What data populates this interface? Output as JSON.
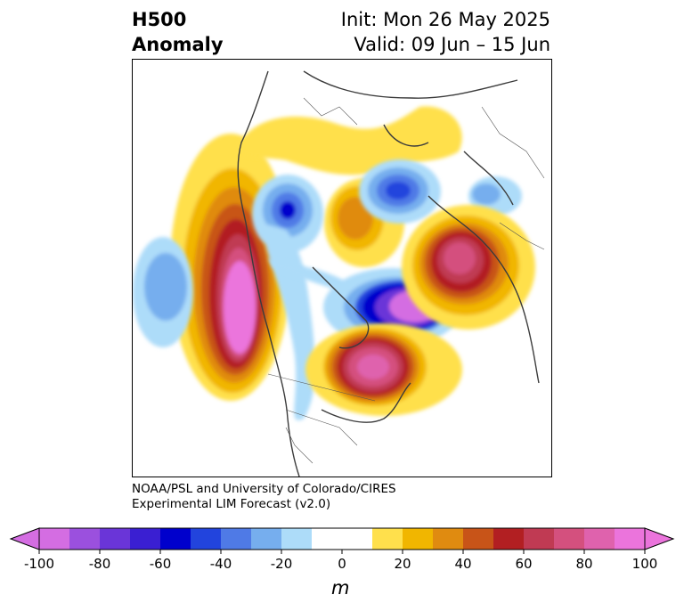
{
  "title": {
    "left_line1": "H500",
    "left_line2": "Anomaly",
    "right_line1": "Init: Mon 26 May 2025",
    "right_line2": "Valid: 09 Jun – 15 Jun"
  },
  "credit": {
    "line1": "NOAA/PSL and University of Colorado/CIRES",
    "line2": "Experimental LIM Forecast (v2.0)"
  },
  "colorbar": {
    "unit_label": "m",
    "tick_labels": [
      "-100",
      "-80",
      "-60",
      "-40",
      "-20",
      "0",
      "20",
      "40",
      "60",
      "80",
      "100"
    ],
    "colors": [
      "#d46de2",
      "#9b50de",
      "#6a35d8",
      "#3a1fd2",
      "#0000cc",
      "#2244dd",
      "#4f7ae6",
      "#76aeee",
      "#addcf9",
      "#ffffff",
      "#ffffff",
      "#ffe04c",
      "#f1b600",
      "#e08b10",
      "#c85418",
      "#b21f22",
      "#c03a53",
      "#d4507e",
      "#df62ad",
      "#eb74dc"
    ],
    "under_color": "#d46de2",
    "over_color": "#eb74dc"
  },
  "colors": {
    "coastline": "#3c3c3c",
    "frame": "#000000"
  }
}
